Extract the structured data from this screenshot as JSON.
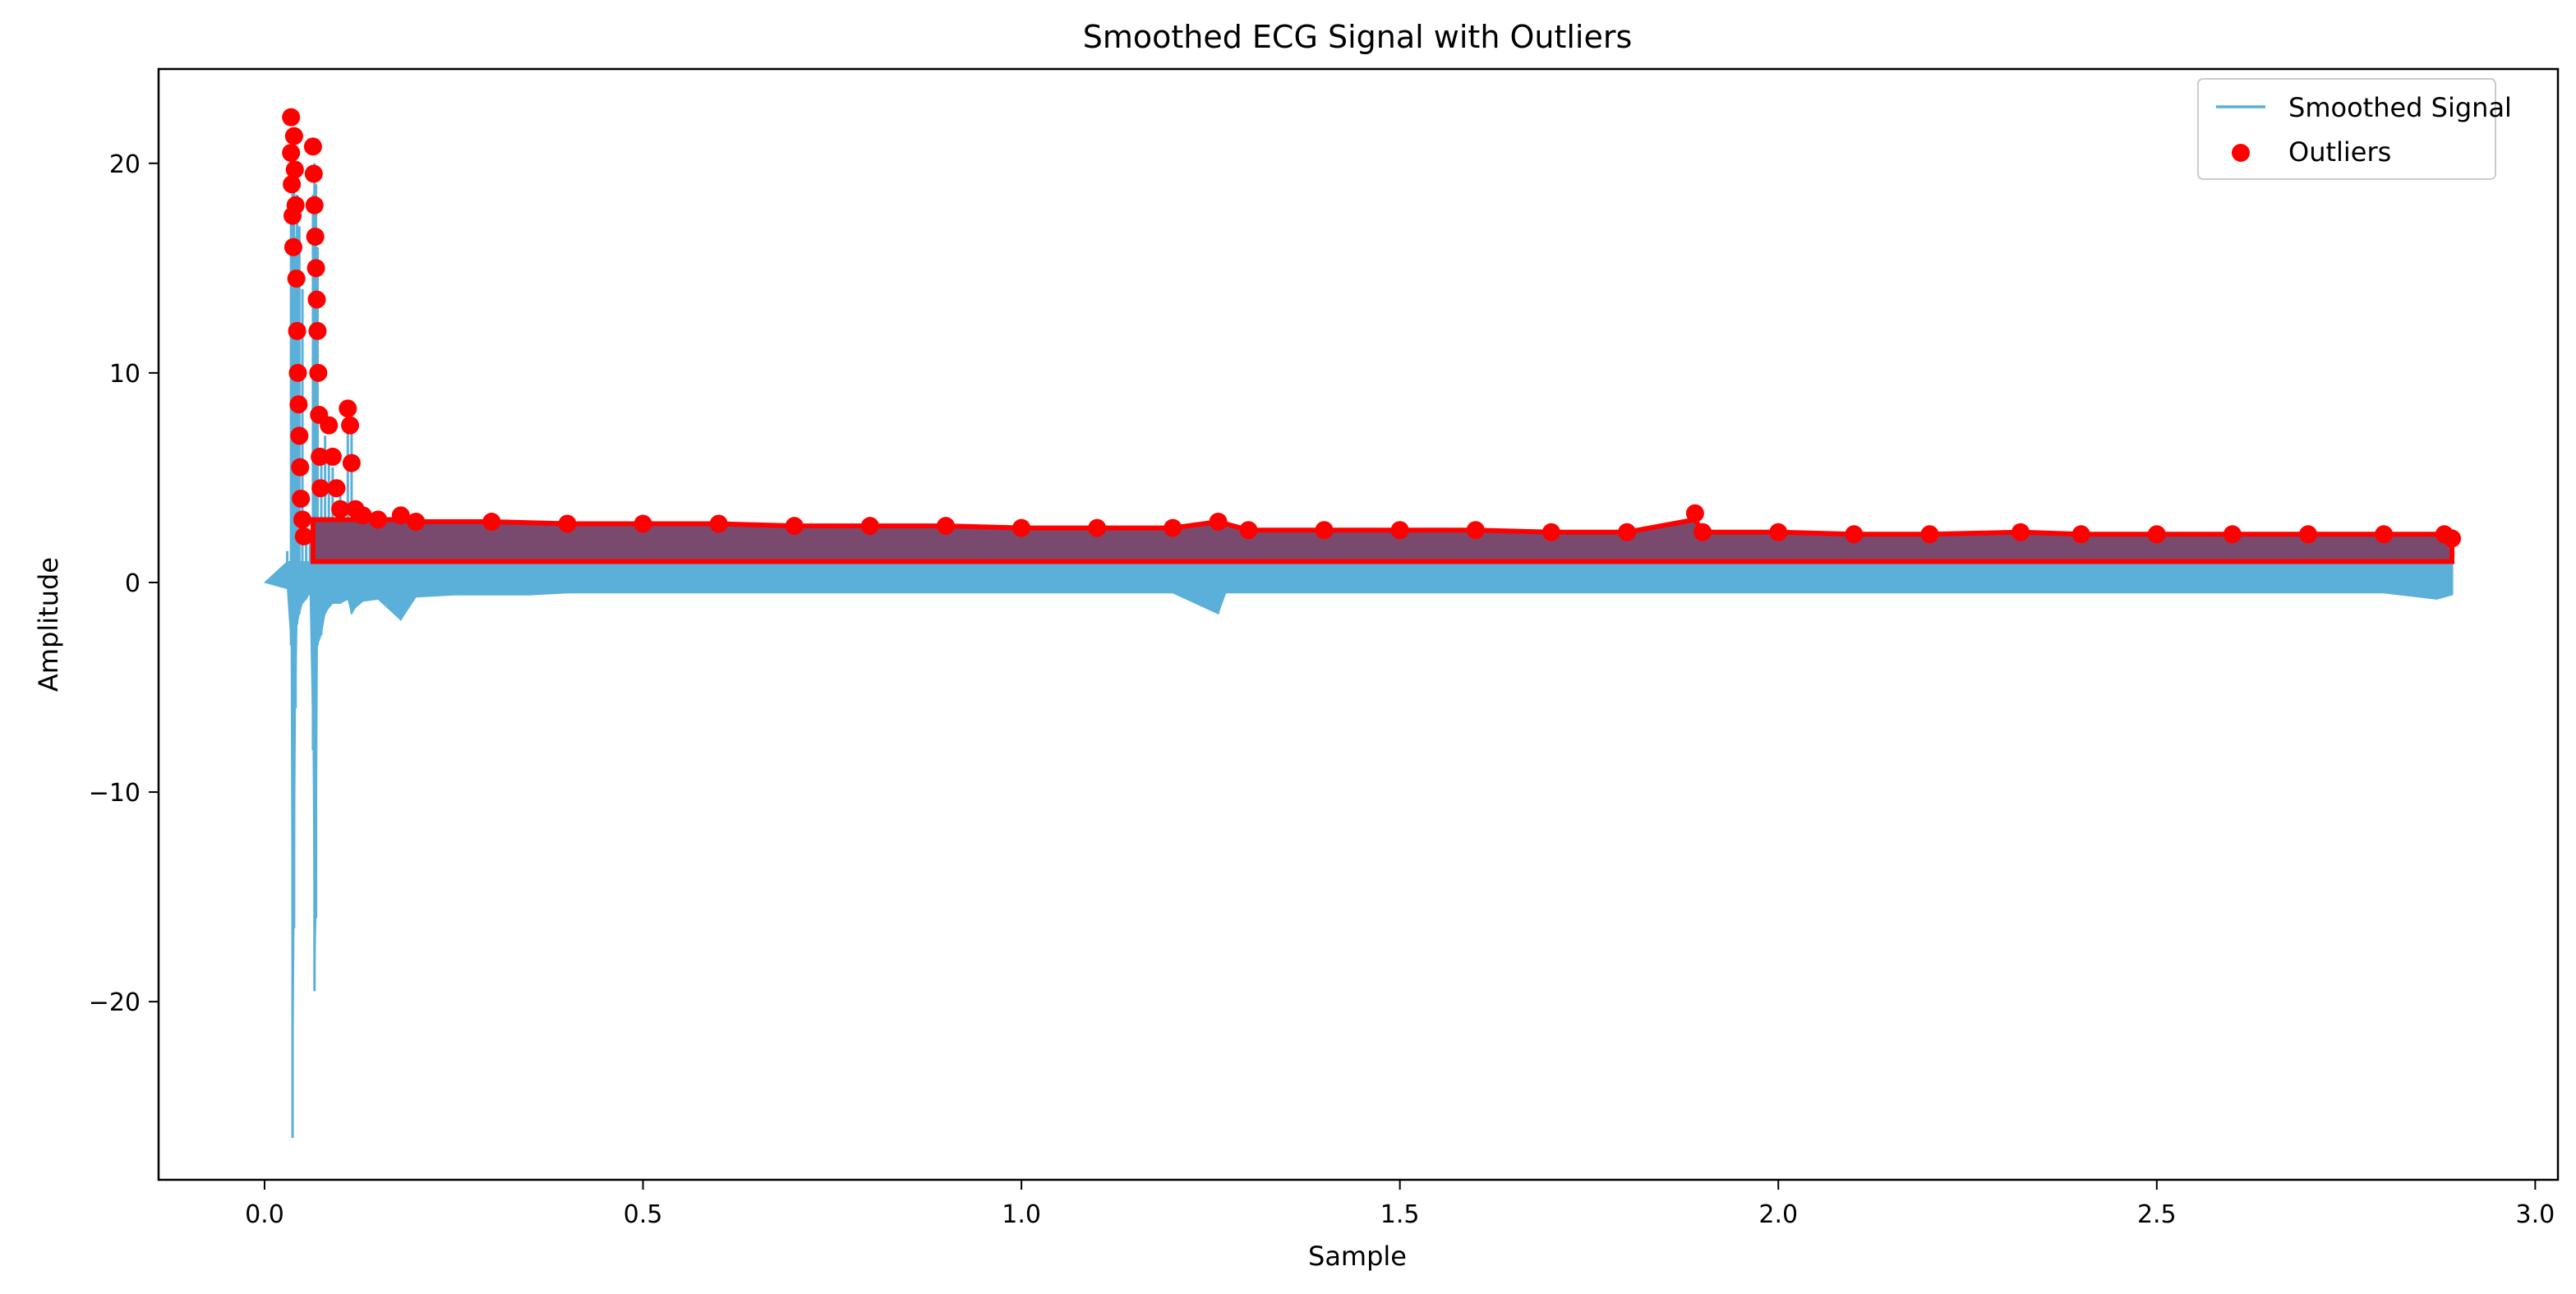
{
  "chart_data": {
    "type": "line",
    "title": "Smoothed ECG Signal with Outliers",
    "xlabel": "Sample",
    "ylabel": "Amplitude",
    "xlim": [
      -0.14,
      3.03
    ],
    "ylim": [
      -28.5,
      24.5
    ],
    "xticks": [
      0.0,
      0.5,
      1.0,
      1.5,
      2.0,
      2.5,
      3.0
    ],
    "xtick_labels": [
      "0.0",
      "0.5",
      "1.0",
      "1.5",
      "2.0",
      "2.5",
      "3.0"
    ],
    "yticks": [
      -20,
      -10,
      0,
      10,
      20
    ],
    "ytick_labels": [
      "−20",
      "−10",
      "0",
      "10",
      "20"
    ],
    "grid": false,
    "legend_position": "upper-right",
    "series": [
      {
        "name": "Smoothed Signal",
        "kind": "line",
        "color": "#5ab0d9",
        "x": [
          0.0,
          0.03,
          0.035,
          0.037,
          0.039,
          0.041,
          0.043,
          0.046,
          0.05,
          0.055,
          0.06,
          0.064,
          0.066,
          0.068,
          0.07,
          0.075,
          0.08,
          0.085,
          0.09,
          0.1,
          0.11,
          0.115,
          0.12,
          0.13,
          0.15,
          0.18,
          0.2,
          0.25,
          0.3,
          0.35,
          0.4,
          0.5,
          0.6,
          0.7,
          0.8,
          0.9,
          1.0,
          1.1,
          1.2,
          1.26,
          1.27,
          1.3,
          1.4,
          1.5,
          1.6,
          1.7,
          1.8,
          1.89,
          1.9,
          2.0,
          2.1,
          2.2,
          2.3,
          2.4,
          2.5,
          2.6,
          2.7,
          2.8,
          2.87,
          2.89
        ],
        "y_high": [
          0.0,
          1.5,
          18.0,
          21.0,
          19.5,
          16.5,
          18.5,
          17.0,
          14.0,
          2.5,
          2.0,
          18.5,
          20.0,
          19.0,
          16.0,
          6.0,
          7.0,
          6.0,
          5.5,
          4.5,
          8.0,
          7.5,
          3.5,
          3.0,
          2.9,
          3.0,
          2.8,
          2.8,
          2.8,
          2.8,
          2.7,
          2.7,
          2.7,
          2.7,
          2.6,
          2.6,
          2.6,
          2.6,
          2.5,
          2.9,
          2.5,
          2.5,
          2.5,
          2.5,
          2.4,
          2.4,
          2.4,
          3.2,
          2.4,
          2.3,
          2.3,
          2.3,
          2.3,
          2.3,
          2.3,
          2.2,
          2.2,
          2.2,
          2.2,
          2.2
        ],
        "y_low": [
          0.0,
          -0.3,
          -3.0,
          -26.5,
          -16.5,
          -6.0,
          -2.0,
          -1.5,
          -1.0,
          -0.8,
          -0.5,
          -8.0,
          -19.5,
          -16.0,
          -3.0,
          -2.5,
          -1.5,
          -1.2,
          -1.0,
          -1.0,
          -0.8,
          -1.5,
          -1.2,
          -0.9,
          -0.8,
          -1.8,
          -0.7,
          -0.6,
          -0.6,
          -0.6,
          -0.5,
          -0.5,
          -0.5,
          -0.5,
          -0.5,
          -0.5,
          -0.5,
          -0.5,
          -0.5,
          -1.5,
          -0.5,
          -0.5,
          -0.5,
          -0.5,
          -0.5,
          -0.5,
          -0.5,
          -0.5,
          -0.5,
          -0.5,
          -0.5,
          -0.5,
          -0.5,
          -0.5,
          -0.5,
          -0.5,
          -0.5,
          -0.5,
          -0.8,
          -0.6
        ]
      },
      {
        "name": "Outliers",
        "kind": "scatter",
        "color": "#ff0000",
        "x": [
          0.035,
          0.035,
          0.036,
          0.037,
          0.038,
          0.039,
          0.04,
          0.041,
          0.042,
          0.043,
          0.044,
          0.045,
          0.046,
          0.047,
          0.048,
          0.05,
          0.052,
          0.064,
          0.065,
          0.066,
          0.067,
          0.068,
          0.069,
          0.07,
          0.071,
          0.072,
          0.073,
          0.074,
          0.085,
          0.09,
          0.095,
          0.1,
          0.11,
          0.113,
          0.115,
          0.12,
          0.13,
          0.15,
          0.18,
          0.2,
          0.3,
          0.4,
          0.5,
          0.6,
          0.7,
          0.8,
          0.9,
          1.0,
          1.1,
          1.2,
          1.26,
          1.3,
          1.4,
          1.5,
          1.6,
          1.7,
          1.8,
          1.89,
          1.9,
          2.0,
          2.1,
          2.2,
          2.32,
          2.4,
          2.5,
          2.6,
          2.7,
          2.8,
          2.88,
          2.89
        ],
        "y": [
          22.2,
          20.5,
          19.0,
          17.5,
          16.0,
          21.3,
          19.7,
          18.0,
          14.5,
          12.0,
          10.0,
          8.5,
          7.0,
          5.5,
          4.0,
          3.0,
          2.2,
          20.8,
          19.5,
          18.0,
          16.5,
          15.0,
          13.5,
          12.0,
          10.0,
          8.0,
          6.0,
          4.5,
          7.5,
          6.0,
          4.5,
          3.5,
          8.3,
          7.5,
          5.7,
          3.5,
          3.2,
          3.0,
          3.2,
          2.9,
          2.9,
          2.8,
          2.8,
          2.8,
          2.7,
          2.7,
          2.7,
          2.6,
          2.6,
          2.6,
          2.9,
          2.5,
          2.5,
          2.5,
          2.5,
          2.4,
          2.4,
          3.3,
          2.4,
          2.4,
          2.3,
          2.3,
          2.4,
          2.3,
          2.3,
          2.3,
          2.3,
          2.3,
          2.3,
          2.1
        ],
        "band_floor": 1.0,
        "band_fill_color": "#7a4a6e"
      }
    ]
  }
}
